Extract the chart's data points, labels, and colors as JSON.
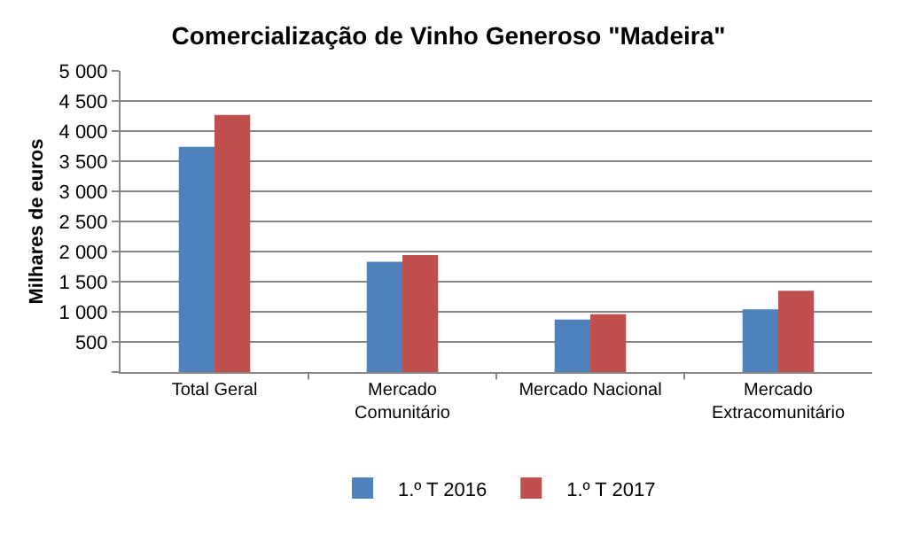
{
  "chart_data": {
    "type": "bar",
    "title": "Comercialização de Vinho Generoso \"Madeira\"",
    "ylabel": "Milhares de euros",
    "categories": [
      "Total Geral",
      "Mercado Comunitário",
      "Mercado Nacional",
      "Mercado Extracomunitário"
    ],
    "series": [
      {
        "name": "1.º T 2016",
        "color": "#4f81bd",
        "values": [
          3740,
          1830,
          870,
          1040
        ]
      },
      {
        "name": "1.º T 2017",
        "color": "#c0504d",
        "values": [
          4270,
          1940,
          960,
          1350
        ]
      }
    ],
    "ylim": [
      0,
      5000
    ],
    "yticks": [
      {
        "value": 0,
        "label": null
      },
      {
        "value": 500,
        "label": "500"
      },
      {
        "value": 1000,
        "label": "1 000"
      },
      {
        "value": 1500,
        "label": "1 500"
      },
      {
        "value": 2000,
        "label": "2 000"
      },
      {
        "value": 2500,
        "label": "2 500"
      },
      {
        "value": 3000,
        "label": "3 000"
      },
      {
        "value": 3500,
        "label": "3 500"
      },
      {
        "value": 4000,
        "label": "4 000"
      },
      {
        "value": 4500,
        "label": "4 500"
      },
      {
        "value": 5000,
        "label": "5 000"
      }
    ],
    "grid": "y",
    "legend": "bottom"
  }
}
